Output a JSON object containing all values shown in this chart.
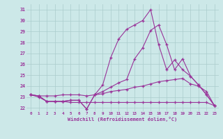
{
  "xlabel": "Windchill (Refroidissement éolien,°C)",
  "x": [
    0,
    1,
    2,
    3,
    4,
    5,
    6,
    7,
    8,
    9,
    10,
    11,
    12,
    13,
    14,
    15,
    16,
    17,
    18,
    19,
    20,
    21,
    22,
    23
  ],
  "line_flat": [
    23.2,
    23.0,
    22.6,
    22.6,
    22.6,
    22.5,
    22.5,
    22.5,
    22.5,
    22.5,
    22.5,
    22.5,
    22.5,
    22.5,
    22.5,
    22.5,
    22.5,
    22.5,
    22.5,
    22.5,
    22.5,
    22.5,
    22.5,
    22.2
  ],
  "line_slow": [
    23.2,
    23.1,
    23.1,
    23.1,
    23.2,
    23.2,
    23.2,
    23.1,
    23.2,
    23.3,
    23.5,
    23.6,
    23.7,
    23.9,
    24.0,
    24.2,
    24.4,
    24.5,
    24.6,
    24.7,
    24.2,
    24.0,
    23.5,
    22.2
  ],
  "line_mid": [
    23.2,
    23.1,
    22.6,
    22.6,
    22.6,
    22.7,
    22.7,
    21.9,
    23.2,
    23.5,
    23.9,
    24.3,
    24.6,
    26.5,
    27.5,
    29.1,
    29.6,
    27.8,
    25.5,
    26.5,
    24.9,
    24.1,
    23.2,
    22.2
  ],
  "line_peak": [
    23.2,
    23.1,
    22.6,
    22.6,
    22.6,
    22.7,
    22.7,
    21.9,
    23.2,
    24.1,
    26.6,
    28.3,
    29.2,
    29.6,
    30.0,
    31.0,
    27.8,
    25.5,
    26.4,
    25.5,
    24.9,
    24.1,
    23.2,
    22.2
  ],
  "line_color": "#993399",
  "bg_color": "#cce8e8",
  "grid_color": "#aacccc",
  "ylim": [
    21.7,
    31.5
  ],
  "yticks": [
    22,
    23,
    24,
    25,
    26,
    27,
    28,
    29,
    30,
    31
  ],
  "xticks": [
    0,
    1,
    2,
    3,
    4,
    5,
    6,
    7,
    8,
    9,
    10,
    11,
    12,
    13,
    14,
    15,
    16,
    17,
    18,
    19,
    20,
    21,
    22,
    23
  ]
}
